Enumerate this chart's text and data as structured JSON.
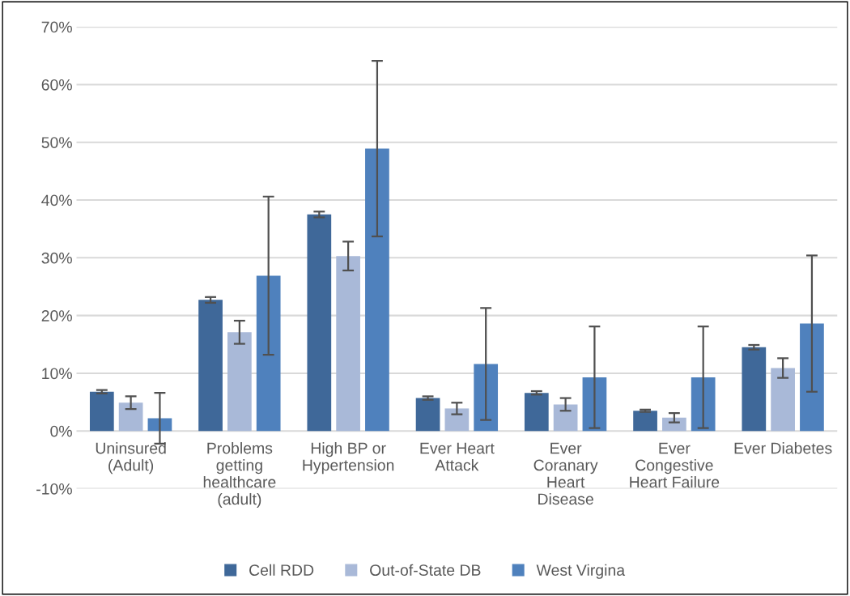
{
  "chart_data": {
    "type": "bar",
    "categories": [
      "Uninsured\n(Adult)",
      "Problems\ngetting\nhealthcare\n(adult)",
      "High BP or\nHypertension",
      "Ever Heart\nAttack",
      "Ever\nCoranary\nHeart\nDisease",
      "Ever\nCongestive\nHeart Failure",
      "Ever Diabetes"
    ],
    "series": [
      {
        "name": "Cell RDD",
        "color": "#3f6899",
        "values": [
          6.8,
          22.7,
          37.5,
          5.7,
          6.6,
          3.5,
          14.5
        ],
        "errors": [
          0.3,
          0.5,
          0.5,
          0.3,
          0.3,
          0.2,
          0.4
        ]
      },
      {
        "name": "Out-of-State DB",
        "color": "#a9b9d8",
        "values": [
          4.9,
          17.1,
          30.3,
          3.9,
          4.6,
          2.3,
          10.9
        ],
        "errors": [
          1.1,
          2.0,
          2.5,
          1.0,
          1.1,
          0.8,
          1.7
        ]
      },
      {
        "name": "West Virgina",
        "color": "#4f81bd",
        "values": [
          2.2,
          26.9,
          48.9,
          11.6,
          9.3,
          9.3,
          18.6
        ],
        "errors": [
          4.4,
          13.7,
          15.2,
          9.7,
          8.8,
          8.8,
          11.8
        ]
      }
    ],
    "ylim": [
      -10,
      70
    ],
    "yticks": [
      {
        "value": -10,
        "label": "-10%"
      },
      {
        "value": 0,
        "label": "0%"
      },
      {
        "value": 10,
        "label": "10%"
      },
      {
        "value": 20,
        "label": "20%"
      },
      {
        "value": 30,
        "label": "30%"
      },
      {
        "value": 40,
        "label": "40%"
      },
      {
        "value": 50,
        "label": "50%"
      },
      {
        "value": 60,
        "label": "60%"
      },
      {
        "value": 70,
        "label": "70%"
      }
    ],
    "grid": "y",
    "legend": "bottom"
  }
}
